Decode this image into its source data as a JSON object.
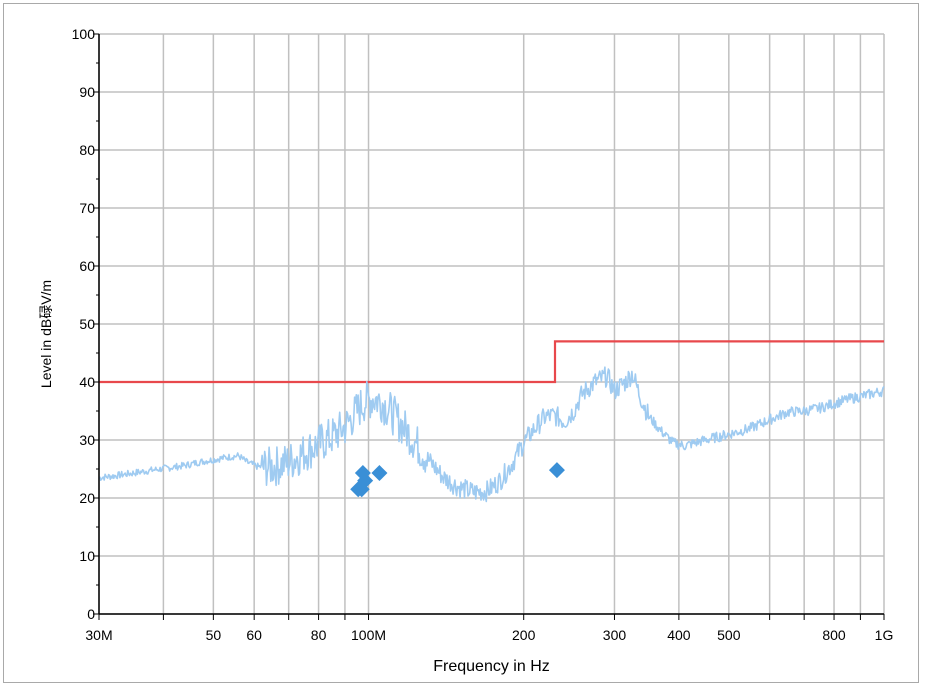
{
  "chart_data": {
    "type": "line",
    "xlabel": "Frequency in Hz",
    "ylabel": "Level in dB碌V/m",
    "xscale": "log",
    "xlim": [
      30000000,
      1000000000
    ],
    "ylim": [
      0,
      100
    ],
    "grid": true,
    "y_ticks": [
      0,
      10,
      20,
      30,
      40,
      50,
      60,
      70,
      80,
      90,
      100
    ],
    "y_tick_labels": [
      "0",
      "10",
      "20",
      "30",
      "40",
      "50",
      "60",
      "70",
      "80",
      "90",
      "100"
    ],
    "x_ticks": [
      30000000,
      50000000,
      60000000,
      80000000,
      100000000,
      200000000,
      300000000,
      400000000,
      500000000,
      800000000,
      1000000000
    ],
    "x_tick_labels": [
      "30M",
      "50",
      "60",
      "80",
      "100M",
      "200",
      "300",
      "400",
      "500",
      "800",
      "1G"
    ],
    "x_minor_grid": [
      40000000,
      70000000,
      90000000,
      600000000,
      700000000,
      900000000
    ],
    "colors": {
      "limit": "#e8484c",
      "trace": "#9fcbf1",
      "markers": "#3a8fd6",
      "grid": "#c0c0c0"
    },
    "series": [
      {
        "kind": "limit-line",
        "points": [
          [
            30000000,
            40
          ],
          [
            230000000,
            40
          ],
          [
            230000000,
            47
          ],
          [
            1000000000,
            47
          ]
        ]
      },
      {
        "kind": "measured-trace",
        "points": [
          [
            30000000,
            23.5
          ],
          [
            32000000,
            23.8
          ],
          [
            35000000,
            24.3
          ],
          [
            38000000,
            24.8
          ],
          [
            41000000,
            25.2
          ],
          [
            44000000,
            25.6
          ],
          [
            47000000,
            26.2
          ],
          [
            50000000,
            26.6
          ],
          [
            53000000,
            27.0
          ],
          [
            56000000,
            27.3
          ],
          [
            58000000,
            26.2
          ],
          [
            61000000,
            25.4
          ],
          [
            65000000,
            25.3
          ],
          [
            70000000,
            26.2
          ],
          [
            75000000,
            27.8
          ],
          [
            80000000,
            29.3
          ],
          [
            85000000,
            30.6
          ],
          [
            90000000,
            32.2
          ],
          [
            95000000,
            35.0
          ],
          [
            98000000,
            36.5
          ],
          [
            102000000,
            37.2
          ],
          [
            106000000,
            36.6
          ],
          [
            110000000,
            35.0
          ],
          [
            120000000,
            31.0
          ],
          [
            130000000,
            26.8
          ],
          [
            140000000,
            23.5
          ],
          [
            150000000,
            21.8
          ],
          [
            160000000,
            21.0
          ],
          [
            170000000,
            21.2
          ],
          [
            180000000,
            23.0
          ],
          [
            190000000,
            26.0
          ],
          [
            200000000,
            29.5
          ],
          [
            210000000,
            32.0
          ],
          [
            220000000,
            34.0
          ],
          [
            230000000,
            34.2
          ],
          [
            240000000,
            33.2
          ],
          [
            250000000,
            35.0
          ],
          [
            260000000,
            38.0
          ],
          [
            275000000,
            40.0
          ],
          [
            290000000,
            41.0
          ],
          [
            300000000,
            38.5
          ],
          [
            315000000,
            40.0
          ],
          [
            325000000,
            41.5
          ],
          [
            335000000,
            38.0
          ],
          [
            350000000,
            34.0
          ],
          [
            370000000,
            31.5
          ],
          [
            390000000,
            29.5
          ],
          [
            410000000,
            29.0
          ],
          [
            450000000,
            30.0
          ],
          [
            500000000,
            31.0
          ],
          [
            550000000,
            32.0
          ],
          [
            600000000,
            33.5
          ],
          [
            650000000,
            34.8
          ],
          [
            700000000,
            35.0
          ],
          [
            750000000,
            35.5
          ],
          [
            800000000,
            36.3
          ],
          [
            850000000,
            37.0
          ],
          [
            900000000,
            37.5
          ],
          [
            950000000,
            38.0
          ],
          [
            1000000000,
            38.5
          ]
        ]
      },
      {
        "kind": "measured-markers",
        "points": [
          [
            95500000,
            21.5
          ],
          [
            97000000,
            21.5
          ],
          [
            97500000,
            24.3
          ],
          [
            98500000,
            23.0
          ],
          [
            105000000,
            24.3
          ],
          [
            232000000,
            24.8
          ]
        ]
      }
    ]
  }
}
